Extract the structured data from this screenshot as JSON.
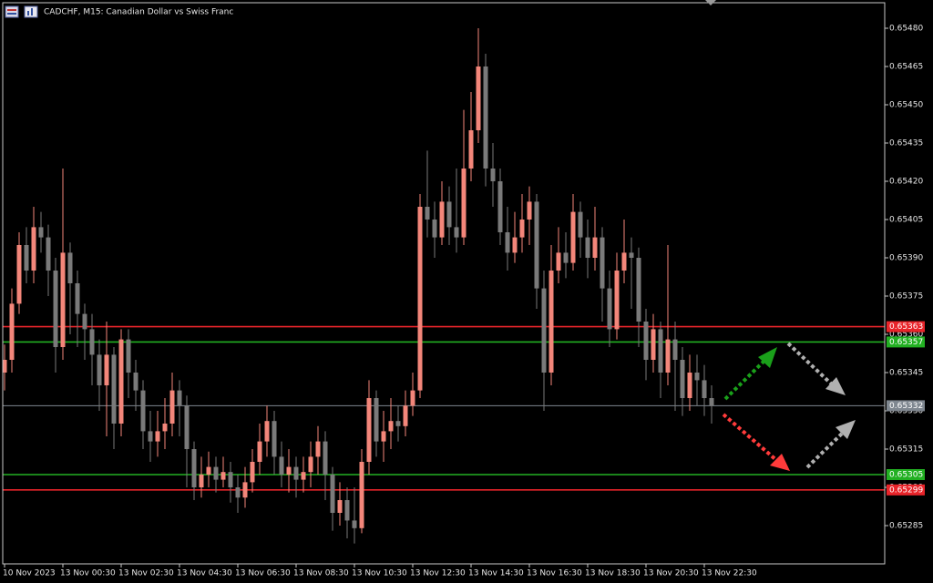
{
  "chart_data": {
    "type": "candlestick",
    "title": "CADCHF, M15:  Canadian Dollar vs Swiss Franc",
    "up_color": "#f3867a",
    "down_color": "#7a7a7a",
    "ylim": [
      0.6527,
      0.6549
    ],
    "yticks": [
      {
        "value": 0.6548,
        "label": "0.65480"
      },
      0.65465,
      {
        "value": 0.6545,
        "label": "0.65450"
      },
      0.65435,
      {
        "value": 0.6542,
        "label": "0.65420"
      },
      0.65405,
      {
        "value": 0.6539,
        "label": "0.65390"
      },
      0.65375,
      {
        "value": 0.6536,
        "label": "0.65360"
      },
      0.65345,
      {
        "value": 0.6533,
        "label": "0.65330"
      },
      0.65315,
      {
        "value": 0.653,
        "label": "0.65300"
      },
      0.65285
    ],
    "categories": [
      "10 Nov 2023",
      null,
      null,
      null,
      null,
      null,
      null,
      null,
      "13 Nov 00:30",
      null,
      null,
      null,
      null,
      null,
      null,
      null,
      "13 Nov 02:30",
      null,
      null,
      null,
      null,
      null,
      null,
      null,
      "13 Nov 04:30",
      null,
      null,
      null,
      null,
      null,
      null,
      null,
      "13 Nov 06:30",
      null,
      null,
      null,
      null,
      null,
      null,
      null,
      "13 Nov 08:30",
      null,
      null,
      null,
      null,
      null,
      null,
      null,
      "13 Nov 10:30",
      null,
      null,
      null,
      null,
      null,
      null,
      null,
      "13 Nov 12:30",
      null,
      null,
      null,
      null,
      null,
      null,
      null,
      "13 Nov 14:30",
      null,
      null,
      null,
      null,
      null,
      null,
      null,
      "13 Nov 16:30",
      null,
      null,
      null,
      null,
      null,
      null,
      null,
      "13 Nov 18:30",
      null,
      null,
      null,
      null,
      null,
      null,
      null,
      "13 Nov 20:30",
      null,
      null,
      null,
      null,
      null,
      null,
      null,
      "13 Nov 22:30",
      null
    ],
    "open": [
      0.65345,
      0.6535,
      0.65372,
      0.65395,
      0.65385,
      0.65402,
      0.65398,
      0.65385,
      0.65355,
      0.65392,
      0.6538,
      0.65368,
      0.65362,
      0.65352,
      0.6534,
      0.65352,
      0.65325,
      0.65358,
      0.65345,
      0.65338,
      0.65322,
      0.65318,
      0.65322,
      0.65325,
      0.65338,
      0.65332,
      0.65315,
      0.653,
      0.65305,
      0.65308,
      0.65303,
      0.65306,
      0.653,
      0.65296,
      0.65302,
      0.6531,
      0.65318,
      0.65326,
      0.65312,
      0.65305,
      0.65308,
      0.65303,
      0.65306,
      0.65312,
      0.65318,
      0.65305,
      0.6529,
      0.65295,
      0.65287,
      0.65284,
      0.6531,
      0.65335,
      0.65318,
      0.65322,
      0.65326,
      0.65324,
      0.65332,
      0.65338,
      0.6541,
      0.65405,
      0.65398,
      0.65412,
      0.65402,
      0.65398,
      0.65425,
      0.6544,
      0.65465,
      0.65425,
      0.6542,
      0.654,
      0.65392,
      0.65398,
      0.65405,
      0.65412,
      0.65378,
      0.65345,
      0.65385,
      0.65392,
      0.65388,
      0.65408,
      0.65398,
      0.6539,
      0.65398,
      0.65378,
      0.65362,
      0.65385,
      0.65392,
      0.6539,
      0.65365,
      0.6535,
      0.65362,
      0.65345,
      0.65358,
      0.6535,
      0.65335,
      0.65345,
      0.65342,
      0.65335
    ],
    "high": [
      0.65356,
      0.65378,
      0.654,
      0.65402,
      0.6541,
      0.65408,
      0.65403,
      0.6539,
      0.65425,
      0.65396,
      0.65385,
      0.65372,
      0.65368,
      0.65358,
      0.65365,
      0.65355,
      0.65362,
      0.65362,
      0.6535,
      0.65342,
      0.6533,
      0.6533,
      0.65335,
      0.65345,
      0.65342,
      0.65336,
      0.65318,
      0.65312,
      0.65314,
      0.65312,
      0.65312,
      0.6531,
      0.65305,
      0.65308,
      0.65315,
      0.65325,
      0.65332,
      0.6533,
      0.65318,
      0.65315,
      0.65312,
      0.65312,
      0.65318,
      0.65324,
      0.65322,
      0.65308,
      0.65302,
      0.653,
      0.653,
      0.65315,
      0.65342,
      0.65338,
      0.6533,
      0.65335,
      0.65332,
      0.65338,
      0.65345,
      0.65415,
      0.65432,
      0.65412,
      0.6542,
      0.65418,
      0.65425,
      0.65448,
      0.65455,
      0.6548,
      0.6547,
      0.65435,
      0.65425,
      0.6541,
      0.65408,
      0.65415,
      0.65418,
      0.65415,
      0.65385,
      0.65395,
      0.65402,
      0.654,
      0.65415,
      0.65412,
      0.65405,
      0.6541,
      0.65402,
      0.65385,
      0.65392,
      0.65405,
      0.65398,
      0.65394,
      0.6537,
      0.65368,
      0.65365,
      0.65395,
      0.65365,
      0.65355,
      0.65352,
      0.65352,
      0.65348,
      0.6534
    ],
    "low": [
      0.65338,
      0.65345,
      0.65368,
      0.6538,
      0.6538,
      0.65392,
      0.65375,
      0.65345,
      0.6535,
      0.6536,
      0.65355,
      0.6535,
      0.6534,
      0.6533,
      0.6532,
      0.65315,
      0.6532,
      0.65335,
      0.6533,
      0.65315,
      0.6531,
      0.65312,
      0.65315,
      0.6532,
      0.6532,
      0.653,
      0.65295,
      0.65296,
      0.653,
      0.65298,
      0.653,
      0.65294,
      0.6529,
      0.65292,
      0.65298,
      0.65305,
      0.65312,
      0.65305,
      0.653,
      0.65298,
      0.65296,
      0.65298,
      0.653,
      0.65305,
      0.65295,
      0.65283,
      0.65285,
      0.6528,
      0.65278,
      0.65282,
      0.65305,
      0.65312,
      0.6531,
      0.65315,
      0.65318,
      0.6532,
      0.65328,
      0.65335,
      0.65398,
      0.6539,
      0.65395,
      0.65395,
      0.65392,
      0.65395,
      0.6542,
      0.65435,
      0.65418,
      0.6541,
      0.65395,
      0.65385,
      0.65388,
      0.65392,
      0.65395,
      0.6537,
      0.6533,
      0.6534,
      0.6538,
      0.65382,
      0.65385,
      0.6539,
      0.65382,
      0.65385,
      0.65365,
      0.65355,
      0.65358,
      0.6538,
      0.6537,
      0.65355,
      0.65342,
      0.65345,
      0.65335,
      0.6534,
      0.6533,
      0.65328,
      0.6533,
      0.65332,
      0.65328,
      0.65325
    ],
    "close": [
      0.6535,
      0.65372,
      0.65395,
      0.65385,
      0.65402,
      0.65398,
      0.65385,
      0.65355,
      0.65392,
      0.6538,
      0.65368,
      0.65362,
      0.65352,
      0.6534,
      0.65352,
      0.65325,
      0.65358,
      0.65345,
      0.65338,
      0.65322,
      0.65318,
      0.65322,
      0.65325,
      0.65338,
      0.65332,
      0.65315,
      0.653,
      0.65305,
      0.65308,
      0.65303,
      0.65306,
      0.653,
      0.65296,
      0.65302,
      0.6531,
      0.65318,
      0.65326,
      0.65312,
      0.65305,
      0.65308,
      0.65303,
      0.65306,
      0.65312,
      0.65318,
      0.65305,
      0.6529,
      0.65295,
      0.65287,
      0.65284,
      0.6531,
      0.65335,
      0.65318,
      0.65322,
      0.65326,
      0.65324,
      0.65332,
      0.65338,
      0.6541,
      0.65405,
      0.65398,
      0.65412,
      0.65402,
      0.65398,
      0.65425,
      0.6544,
      0.65465,
      0.65425,
      0.6542,
      0.654,
      0.65392,
      0.65398,
      0.65405,
      0.65412,
      0.65378,
      0.65345,
      0.65385,
      0.65392,
      0.65388,
      0.65408,
      0.65398,
      0.6539,
      0.65398,
      0.65378,
      0.65362,
      0.65385,
      0.65392,
      0.6539,
      0.65365,
      0.6535,
      0.65362,
      0.65345,
      0.65358,
      0.6535,
      0.65335,
      0.65345,
      0.65342,
      0.65335,
      0.65332
    ],
    "levels": [
      {
        "value": 0.65363,
        "color": "#e8242a"
      },
      {
        "value": 0.65357,
        "color": "#22b022"
      },
      {
        "value": 0.65332,
        "color": "#7f8790"
      },
      {
        "value": 0.65305,
        "color": "#22b022"
      },
      {
        "value": 0.65299,
        "color": "#e8242a"
      }
    ]
  }
}
